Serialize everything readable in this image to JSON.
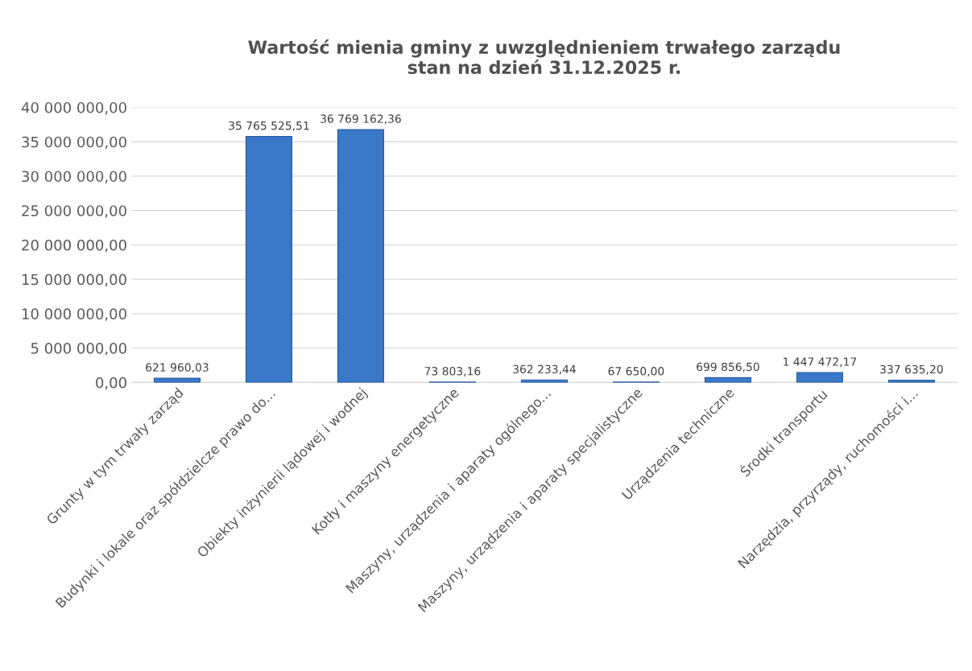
{
  "chart_data": {
    "type": "bar",
    "title": "Wartość mienia gminy z uwzględnieniem trwałego zarządu\nstan na dzień 31.12.2025 r.",
    "categories": [
      "Grunty w tym trwały zarząd",
      "Budynki i lokale oraz spółdzielcze prawo do...",
      "Obiekty inżynierii lądowej i wodnej",
      "Kotły i maszyny energetyczne",
      "Maszyny, urządzenia i aparaty ogólnego...",
      "Maszyny, urządzenia i aparaty specjalistyczne",
      "Urządzenia techniczne",
      "Środki transportu",
      "Narzędzia, przyrządy, ruchomości i..."
    ],
    "values": [
      621960.03,
      35765525.51,
      36769162.36,
      73803.16,
      362233.44,
      67650.0,
      699856.5,
      1447472.17,
      337635.2
    ],
    "value_labels": [
      "621 960,03",
      "35 765 525,51",
      "36 769 162,36",
      "73 803,16",
      "362 233,44",
      "67 650,00",
      "699 856,50",
      "1 447 472,17",
      "337 635,20"
    ],
    "color": "#3a78c8",
    "ylim": [
      0,
      40000000
    ],
    "yticks": [
      {
        "value": 0,
        "label": "0,00"
      },
      {
        "value": 5000000,
        "label": "5 000 000,00"
      },
      {
        "value": 10000000,
        "label": "10 000 000,00"
      },
      {
        "value": 15000000,
        "label": "15 000 000,00"
      },
      {
        "value": 20000000,
        "label": "20 000 000,00"
      },
      {
        "value": 25000000,
        "label": "25 000 000,00"
      },
      {
        "value": 30000000,
        "label": "30 000 000,00"
      },
      {
        "value": 35000000,
        "label": "35 000 000,00"
      },
      {
        "value": 40000000,
        "label": "40 000 000,00"
      }
    ],
    "grid": "y"
  }
}
